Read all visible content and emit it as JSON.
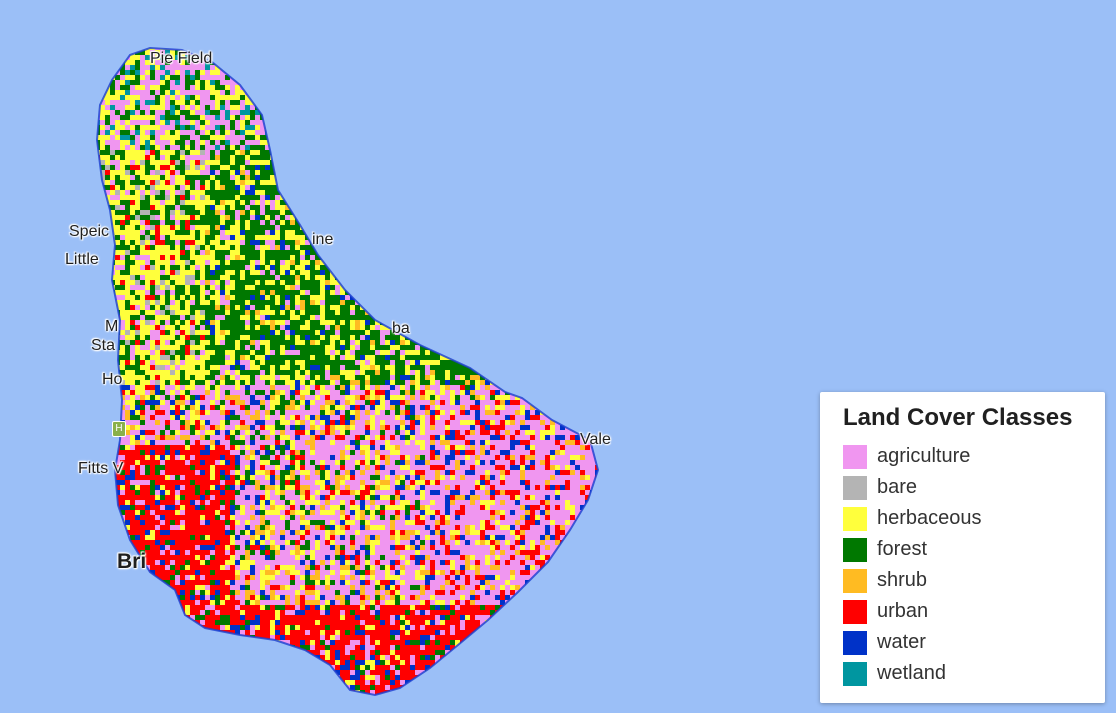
{
  "map": {
    "places": [
      {
        "id": "pie-field",
        "text": "Pie Field"
      },
      {
        "id": "speightstown",
        "text": "Speic"
      },
      {
        "id": "little-good-harbour",
        "text": "Little"
      },
      {
        "id": "st-john",
        "text": "ine"
      },
      {
        "id": "mullins",
        "text": "M"
      },
      {
        "id": "mount-standfast",
        "text": "Sta"
      },
      {
        "id": "holetown",
        "text": "Ho"
      },
      {
        "id": "bathsheba",
        "text": "ba"
      },
      {
        "id": "fitts-village",
        "text": "Fitts V"
      },
      {
        "id": "bridgetown",
        "text": "Bri"
      },
      {
        "id": "the-vale",
        "text": "Vale"
      }
    ],
    "road_shield": "H"
  },
  "legend": {
    "title": "Land Cover Classes",
    "items": [
      {
        "label": "agriculture",
        "color": "#f096f0"
      },
      {
        "label": "bare",
        "color": "#b4b4b4"
      },
      {
        "label": "herbaceous",
        "color": "#ffff3c"
      },
      {
        "label": "forest",
        "color": "#007800"
      },
      {
        "label": "shrub",
        "color": "#ffbb22"
      },
      {
        "label": "urban",
        "color": "#ff0000"
      },
      {
        "label": "water",
        "color": "#0032c8"
      },
      {
        "label": "wetland",
        "color": "#0096a0"
      }
    ]
  }
}
